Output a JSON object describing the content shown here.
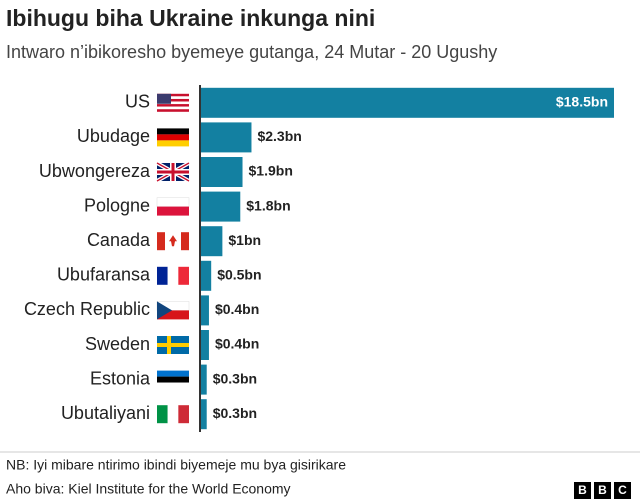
{
  "chart_data": {
    "type": "bar",
    "orientation": "horizontal",
    "title": "Ibihugu biha Ukraine inkunga nini",
    "subtitle": "Intwaro n’ibikoresho byemeye gutanga, 24 Mutar - 20 Ugushy",
    "categories": [
      "US",
      "Ubudage",
      "Ubwongereza",
      "Pologne",
      "Canada",
      "Ubufaransa",
      "Czech Republic",
      "Sweden",
      "Estonia",
      "Ubutaliyani"
    ],
    "values": [
      18.5,
      2.3,
      1.9,
      1.8,
      1,
      0.5,
      0.4,
      0.4,
      0.3,
      0.3
    ],
    "value_labels": [
      "$18.5bn",
      "$2.3bn",
      "$1.9bn",
      "$1.8bn",
      "$1bn",
      "$0.5bn",
      "$0.4bn",
      "$0.4bn",
      "$0.3bn",
      "$0.3bn"
    ],
    "color": "#1380a1",
    "note": "NB: Iyi mibare ntirimo ibindi biyemeje mu bya gisirikare",
    "source": "Aho biva: Kiel Institute for the World Economy"
  },
  "logo": [
    "B",
    "B",
    "C"
  ]
}
